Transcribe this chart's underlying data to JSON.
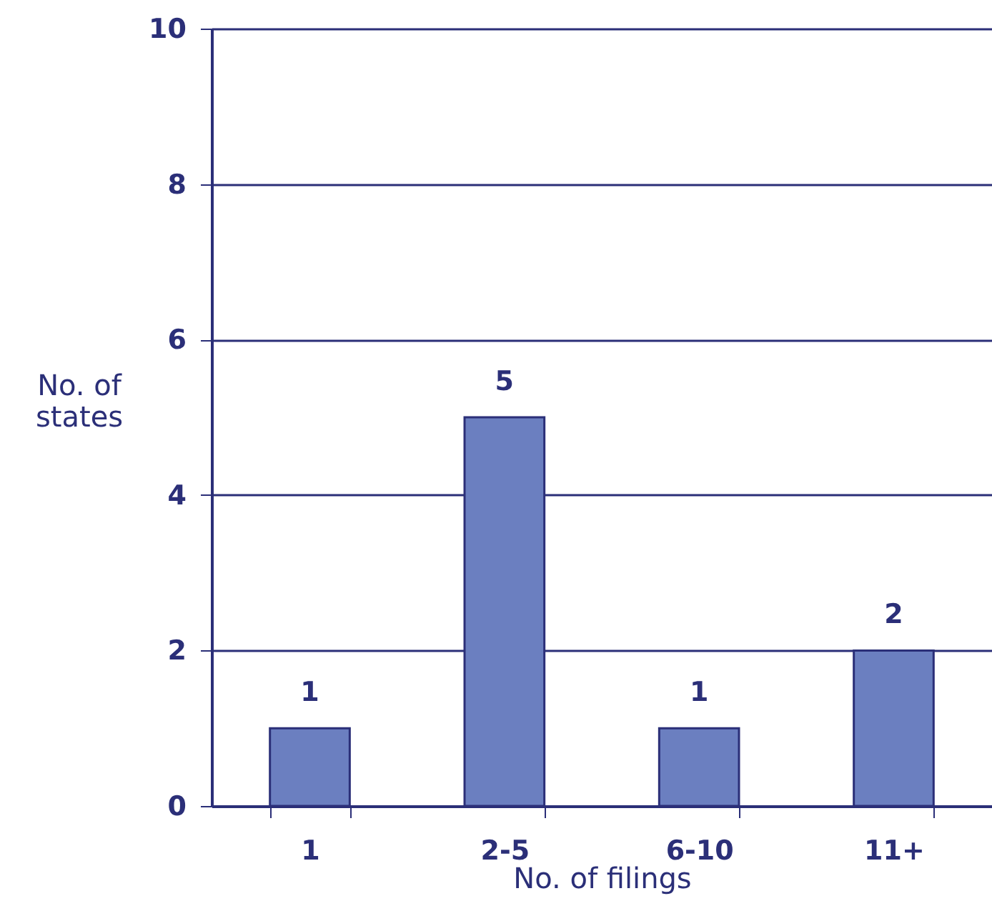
{
  "chart_data": {
    "type": "bar",
    "xlabel": "No. of filings",
    "ylabel": "No. of states",
    "categories": [
      "1",
      "2-5",
      "6-10",
      "11+"
    ],
    "values": [
      1,
      5,
      1,
      2
    ],
    "color": "#6b7fc0",
    "ylim": [
      0,
      10
    ],
    "yticks": [
      0,
      2,
      4,
      6,
      8,
      10
    ],
    "grid": "y",
    "data_labels": true
  }
}
